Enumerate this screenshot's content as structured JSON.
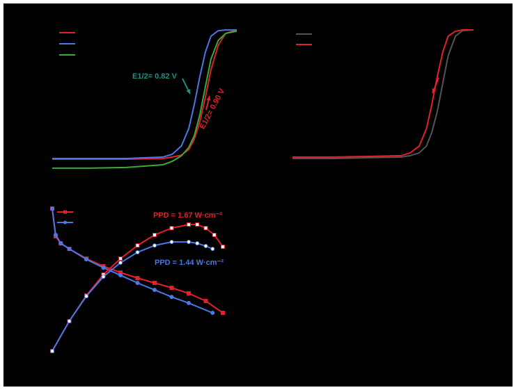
{
  "chart_data": [
    {
      "type": "line",
      "xlim": [
        0,
        100
      ],
      "ylim": [
        0,
        100
      ],
      "x": [
        0,
        20,
        40,
        60,
        65,
        70,
        74,
        77,
        80,
        83,
        86,
        90,
        94,
        100
      ],
      "series": [
        {
          "color": "#e3202b",
          "values": [
            7.8,
            7.8,
            7.8,
            8.3,
            9.3,
            10.7,
            14.6,
            22,
            34.1,
            51.2,
            70.7,
            87.8,
            96.1,
            98.5
          ]
        },
        {
          "color": "#4a78e8",
          "values": [
            8.3,
            8.3,
            8.3,
            9.3,
            11.2,
            17.1,
            29.3,
            46.3,
            65.9,
            82.9,
            94.1,
            98,
            98.5,
            98.5
          ]
        },
        {
          "color": "#3aab3a",
          "values": [
            1.5,
            1.5,
            2,
            3.9,
            6.3,
            10.2,
            16.1,
            24.4,
            39,
            58.5,
            78,
            91.2,
            96.1,
            97.6
          ]
        }
      ],
      "annotations": [
        {
          "text": "E1/2= 0.82 V",
          "color": "#1f8f7f"
        },
        {
          "text": "E1/2= 0.90 V",
          "color": "#e3202b"
        }
      ]
    },
    {
      "type": "line",
      "xlim": [
        0,
        100
      ],
      "ylim": [
        0,
        100
      ],
      "x": [
        0,
        20,
        40,
        60,
        65,
        70,
        74,
        77,
        80,
        83,
        86,
        90,
        94,
        100
      ],
      "series": [
        {
          "color": "#555555",
          "values": [
            1,
            1,
            1.6,
            2.1,
            3.2,
            5.3,
            10.5,
            21,
            36.8,
            57.9,
            78.9,
            93.7,
            97.9,
            98.4
          ]
        },
        {
          "color": "#e3202b",
          "values": [
            2.1,
            2.1,
            2.6,
            3.2,
            5.3,
            10.5,
            23.7,
            42.1,
            63.2,
            81.6,
            93.7,
            97.4,
            98.4,
            98.4
          ]
        }
      ],
      "annotations": []
    },
    {
      "type": "line",
      "xlim": [
        0,
        100
      ],
      "ylim": [
        0,
        100
      ],
      "series": [
        {
          "color": "#e3202b",
          "marker": "square",
          "fill": "#e3202b",
          "x": [
            0,
            2,
            5,
            10,
            20,
            30,
            40,
            50,
            60,
            70,
            80,
            90,
            100
          ],
          "values": [
            100,
            80.5,
            75.6,
            71.7,
            64.9,
            59.5,
            55.1,
            51.2,
            47.8,
            44.4,
            40.5,
            35.1,
            26.8
          ]
        },
        {
          "color": "#4a78e8",
          "marker": "circle",
          "fill": "#4a78e8",
          "x": [
            0,
            2,
            5,
            10,
            20,
            30,
            40,
            50,
            60,
            70,
            80,
            94
          ],
          "values": [
            100,
            81.5,
            75.6,
            71.7,
            64.4,
            58.5,
            53.2,
            47.8,
            42.9,
            38,
            33.7,
            26.8
          ]
        },
        {
          "color": "#e3202b",
          "marker": "square",
          "fill": "#ffffff",
          "x": [
            0,
            10,
            20,
            30,
            40,
            50,
            60,
            70,
            80,
            85,
            90,
            95,
            100
          ],
          "values": [
            0,
            21,
            39,
            53.7,
            64.9,
            74.1,
            81.5,
            86.3,
            88.8,
            88.8,
            86.3,
            81.5,
            73.2
          ]
        },
        {
          "color": "#4a78e8",
          "marker": "circle",
          "fill": "#ffffff",
          "x": [
            0,
            10,
            20,
            30,
            40,
            50,
            60,
            70,
            80,
            85,
            90,
            94
          ],
          "values": [
            0,
            21,
            38.5,
            52.2,
            62,
            69.3,
            74.1,
            76.6,
            76.6,
            75.6,
            73.7,
            71.7
          ]
        }
      ],
      "annotations": [
        {
          "text": "PPD = 1.67 W·cm⁻²",
          "color": "#e3202b"
        },
        {
          "text": "PPD = 1.44 W·cm⁻²",
          "color": "#4a78e8"
        }
      ]
    }
  ]
}
